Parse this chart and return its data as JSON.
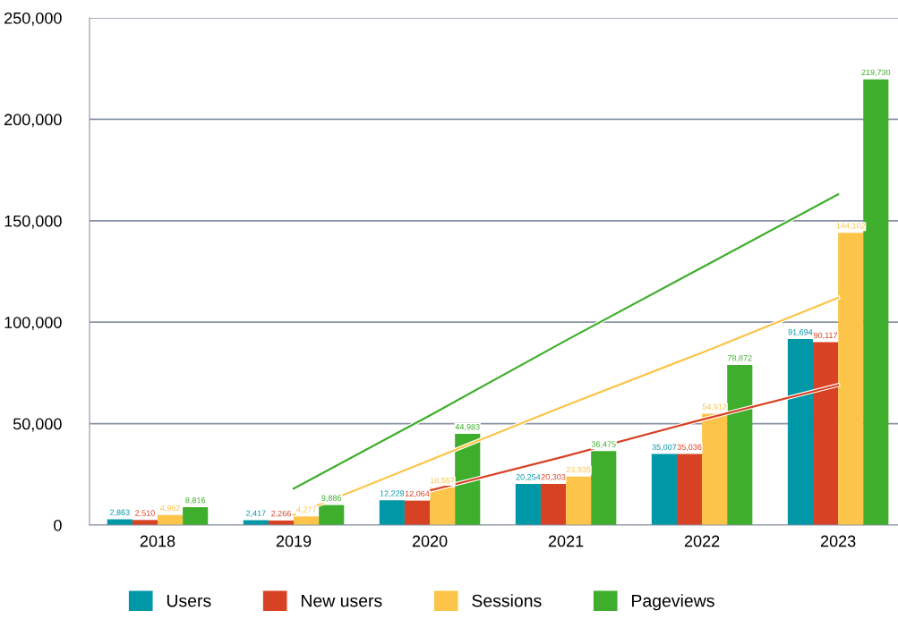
{
  "chart_data": {
    "type": "bar",
    "categories": [
      "2018",
      "2019",
      "2020",
      "2021",
      "2022",
      "2023"
    ],
    "series": [
      {
        "name": "Users",
        "color": "#0097a7",
        "values": [
          2863,
          2417,
          12229,
          20254,
          35007,
          91694
        ],
        "value_labels": [
          "2,863",
          "2,417",
          "12,229",
          "20,254",
          "35,007",
          "91,694"
        ]
      },
      {
        "name": "New users",
        "color": "#d84224",
        "values": [
          2510,
          2266,
          12064,
          20303,
          35036,
          90117
        ],
        "value_labels": [
          "2,510",
          "2,266",
          "12,064",
          "20,303",
          "35,036",
          "90,117"
        ]
      },
      {
        "name": "Sessions",
        "color": "#fcc448",
        "values": [
          4962,
          4277,
          18557,
          23935,
          54912,
          144102
        ],
        "value_labels": [
          "4,962",
          "4,277",
          "18,557",
          "23,935",
          "54,912",
          "144,102"
        ]
      },
      {
        "name": "Pageviews",
        "color": "#3fae2c",
        "values": [
          8816,
          9886,
          44983,
          36475,
          78872,
          219730
        ],
        "value_labels": [
          "8,816",
          "9,886",
          "44,983",
          "36,475",
          "78,872",
          "219,730"
        ]
      },
      {
        "type": "line",
        "color": "#d84224",
        "values": [
          null,
          null,
          17000,
          34000,
          52000,
          69000
        ]
      },
      {
        "type": "line",
        "color": "#fcc448",
        "values": [
          null,
          5000,
          32000,
          59000,
          85000,
          112000
        ]
      },
      {
        "type": "line",
        "color": "#3fae2c",
        "values": [
          null,
          18000,
          54000,
          91000,
          127000,
          163000
        ]
      }
    ],
    "ylim": [
      0,
      250000
    ],
    "yticks": [
      {
        "value": 0,
        "label": "0"
      },
      {
        "value": 50000,
        "label": "50,000"
      },
      {
        "value": 100000,
        "label": "100,000"
      },
      {
        "value": 150000,
        "label": "150,000"
      },
      {
        "value": 200000,
        "label": "200,000"
      },
      {
        "value": 250000,
        "label": "250,000"
      }
    ],
    "grid": "y",
    "legend": "bottom"
  }
}
